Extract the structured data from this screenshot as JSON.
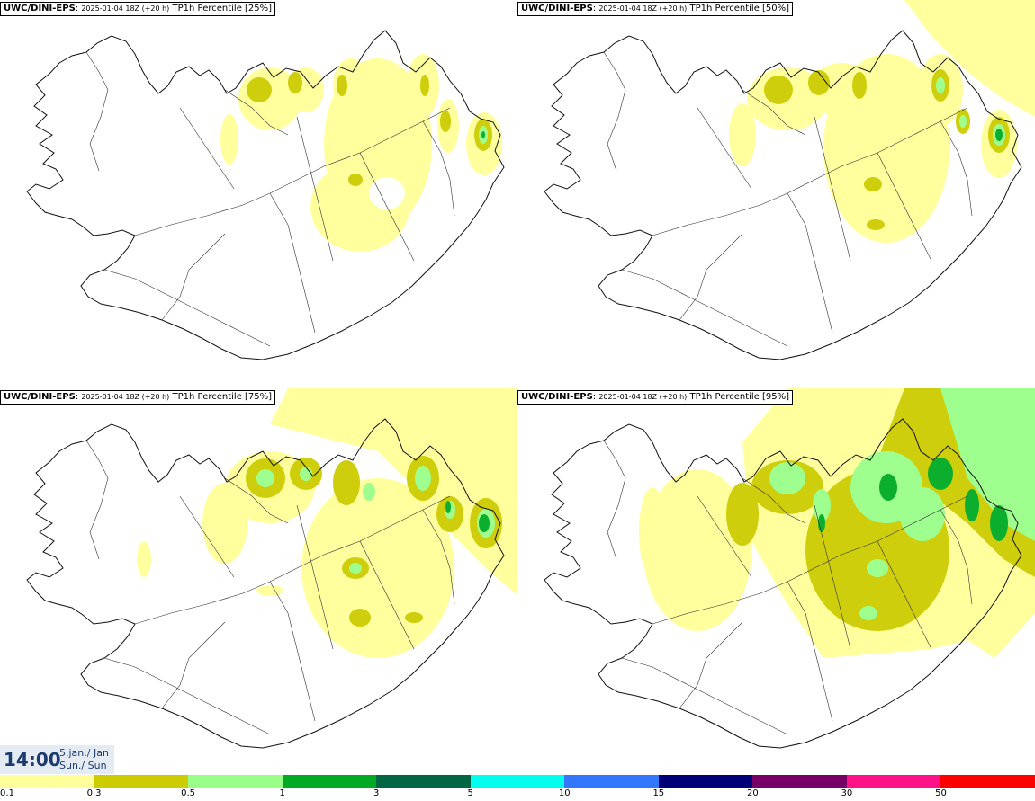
{
  "panels": [
    {
      "model": "UWC/DINI-EPS",
      "run": "2025-01-04 18Z (+20 h)",
      "field": "TP1h Percentile [25%]"
    },
    {
      "model": "UWC/DINI-EPS",
      "run": "2025-01-04 18Z (+20 h)",
      "field": "TP1h Percentile [50%]"
    },
    {
      "model": "UWC/DINI-EPS",
      "run": "2025-01-04 18Z (+20 h)",
      "field": "TP1h Percentile [75%]"
    },
    {
      "model": "UWC/DINI-EPS",
      "run": "2025-01-04 18Z (+20 h)",
      "field": "TP1h Percentile [95%]"
    }
  ],
  "time": {
    "clock": "14:00",
    "date_line1": "5.jan./ Jan",
    "date_line2": "Sun./ Sun"
  },
  "legend": {
    "colors": [
      "#ffff99",
      "#cccc00",
      "#99ff88",
      "#00aa22",
      "#006644",
      "#00ffee",
      "#3377ff",
      "#000077",
      "#770066",
      "#ff1188",
      "#ff0000"
    ],
    "labels": [
      "0.1",
      "0.3",
      "0.5",
      "1",
      "3",
      "5",
      "10",
      "15",
      "20",
      "30",
      "50"
    ]
  }
}
